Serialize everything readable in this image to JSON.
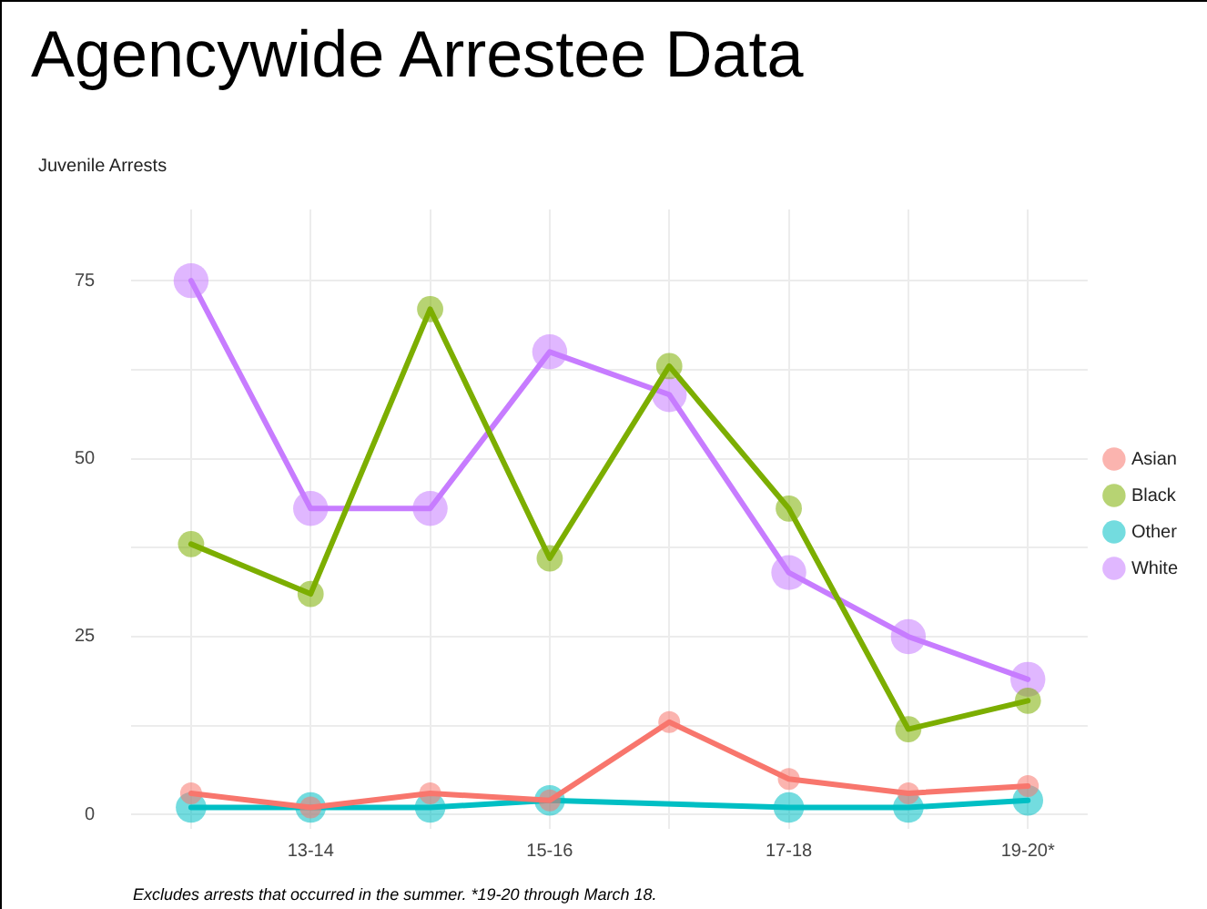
{
  "chart_data": {
    "type": "line",
    "title": "Agencywide Arrestee Data",
    "subtitle": "Juvenile Arrests",
    "categories": [
      null,
      "13-14",
      null,
      "15-16",
      null,
      "17-18",
      null,
      "19-20*"
    ],
    "series": [
      {
        "name": "Asian",
        "color": "#f8766d",
        "values": [
          3,
          1,
          3,
          2,
          13,
          5,
          3,
          4
        ]
      },
      {
        "name": "Black",
        "color": "#7cae00",
        "values": [
          38,
          31,
          71,
          36,
          63,
          43,
          12,
          16
        ]
      },
      {
        "name": "Other",
        "color": "#00bfc4",
        "values": [
          1,
          1,
          1,
          2,
          null,
          1,
          1,
          2
        ]
      },
      {
        "name": "White",
        "color": "#c77cff",
        "values": [
          75,
          43,
          43,
          65,
          59,
          34,
          25,
          19
        ]
      }
    ],
    "ylim": [
      -2,
      85
    ],
    "yticks": [
      0,
      {
        "value": 12.5,
        "label": null
      },
      25,
      {
        "value": 37.5,
        "label": null
      },
      50,
      {
        "value": 62.5,
        "label": null
      },
      75
    ],
    "grid": true,
    "legend": "right",
    "marker": "circle",
    "line_style": "solid",
    "annotations": [
      "Excludes arrests that occurred in the summer. *19-20 through March 18."
    ]
  }
}
